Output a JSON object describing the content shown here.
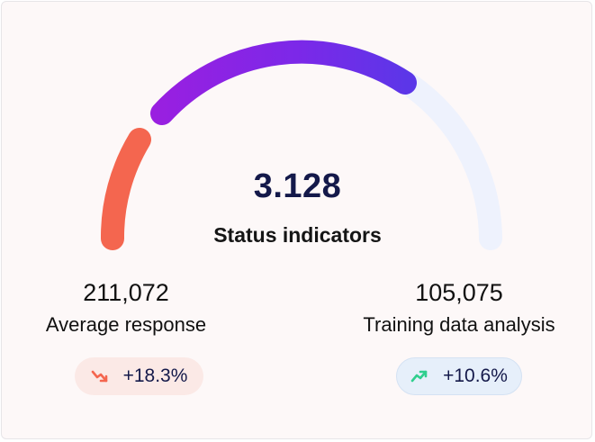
{
  "gauge": {
    "value": "3.128",
    "label": "Status indicators",
    "segments": [
      {
        "name": "low",
        "color": "#f4664f"
      },
      {
        "name": "mid",
        "color": "#8a24e4"
      },
      {
        "name": "remaining",
        "color": "#eef2fd"
      }
    ]
  },
  "stats": {
    "left": {
      "value": "211,072",
      "label": "Average response",
      "change": "+18.3%",
      "trend": "down",
      "icon": "trend-down-icon",
      "color": "#f4664f"
    },
    "right": {
      "value": "105,075",
      "label": "Training data analysis",
      "change": "+10.6%",
      "trend": "up",
      "icon": "trend-up-icon",
      "color": "#2fcf8e"
    }
  }
}
